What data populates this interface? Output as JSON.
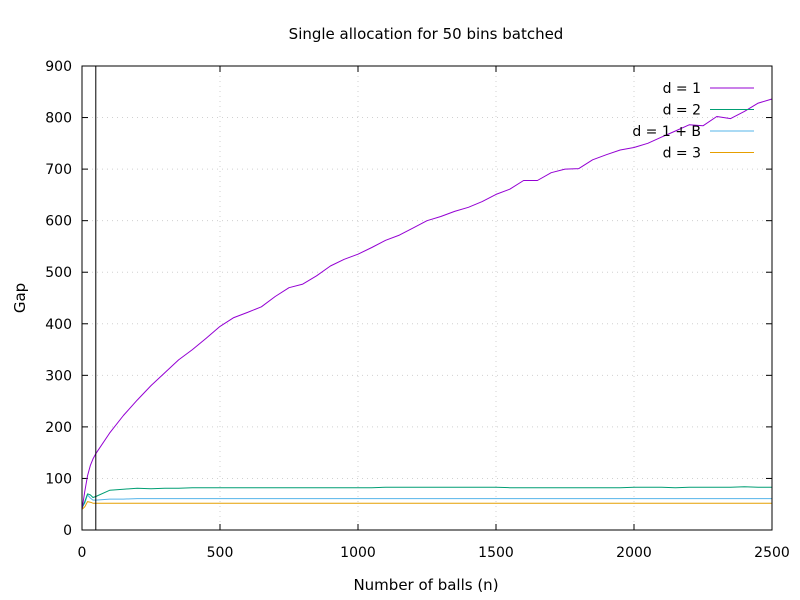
{
  "chart_data": {
    "type": "line",
    "title": "Single allocation for 50 bins batched",
    "xlabel": "Number of balls (n)",
    "ylabel": "Gap",
    "xlim": [
      0,
      2500
    ],
    "ylim": [
      0,
      900
    ],
    "xticks": [
      0,
      500,
      1000,
      1500,
      2000,
      2500
    ],
    "yticks": [
      0,
      100,
      200,
      300,
      400,
      500,
      600,
      700,
      800,
      900
    ],
    "grid": true,
    "legend_position": "top-right",
    "annotation_vline_x": 50,
    "x": [
      0,
      10,
      20,
      30,
      40,
      50,
      100,
      150,
      200,
      250,
      300,
      350,
      400,
      450,
      500,
      550,
      600,
      650,
      700,
      750,
      800,
      850,
      900,
      950,
      1000,
      1050,
      1100,
      1150,
      1200,
      1250,
      1300,
      1350,
      1400,
      1450,
      1500,
      1550,
      1600,
      1650,
      1700,
      1750,
      1800,
      1850,
      1900,
      1950,
      2000,
      2050,
      2100,
      2150,
      2200,
      2250,
      2300,
      2350,
      2400,
      2450,
      2500
    ],
    "series": [
      {
        "name": "d = 1",
        "color": "#9400d3",
        "values": [
          40,
          75,
          105,
          125,
          138,
          148,
          188,
          222,
          252,
          280,
          305,
          330,
          350,
          372,
          395,
          412,
          422,
          433,
          453,
          470,
          477,
          493,
          512,
          525,
          535,
          548,
          562,
          572,
          586,
          600,
          608,
          618,
          626,
          637,
          651,
          661,
          678,
          678,
          693,
          700,
          701,
          718,
          728,
          737,
          742,
          750,
          762,
          774,
          786,
          784,
          802,
          798,
          812,
          828,
          836
        ]
      },
      {
        "name": "d = 2",
        "color": "#009e73",
        "values": [
          42,
          55,
          70,
          68,
          63,
          65,
          77,
          79,
          81,
          80,
          81,
          81,
          82,
          82,
          82,
          82,
          82,
          82,
          82,
          82,
          82,
          82,
          82,
          82,
          82,
          82,
          83,
          83,
          83,
          83,
          83,
          83,
          83,
          83,
          83,
          82,
          82,
          82,
          82,
          82,
          82,
          82,
          82,
          82,
          83,
          83,
          83,
          82,
          83,
          83,
          83,
          83,
          84,
          83,
          83
        ]
      },
      {
        "name": "d = 1 + B",
        "color": "#56b4e9",
        "values": [
          44,
          52,
          68,
          62,
          58,
          58,
          60,
          60,
          61,
          61,
          61,
          61,
          61,
          61,
          61,
          61,
          61,
          61,
          61,
          61,
          61,
          61,
          61,
          61,
          61,
          61,
          61,
          61,
          61,
          61,
          61,
          61,
          61,
          61,
          61,
          61,
          61,
          61,
          61,
          61,
          61,
          61,
          61,
          61,
          61,
          61,
          61,
          61,
          61,
          61,
          61,
          61,
          61,
          61,
          61
        ]
      },
      {
        "name": "d = 3",
        "color": "#e69f00",
        "values": [
          40,
          45,
          55,
          54,
          52,
          52,
          52,
          52,
          52,
          52,
          52,
          52,
          52,
          52,
          52,
          52,
          52,
          52,
          52,
          52,
          52,
          52,
          52,
          52,
          52,
          52,
          52,
          52,
          52,
          52,
          52,
          52,
          52,
          52,
          52,
          52,
          52,
          52,
          52,
          52,
          52,
          52,
          52,
          52,
          52,
          52,
          52,
          52,
          52,
          52,
          52,
          52,
          52,
          52,
          52
        ]
      }
    ]
  }
}
